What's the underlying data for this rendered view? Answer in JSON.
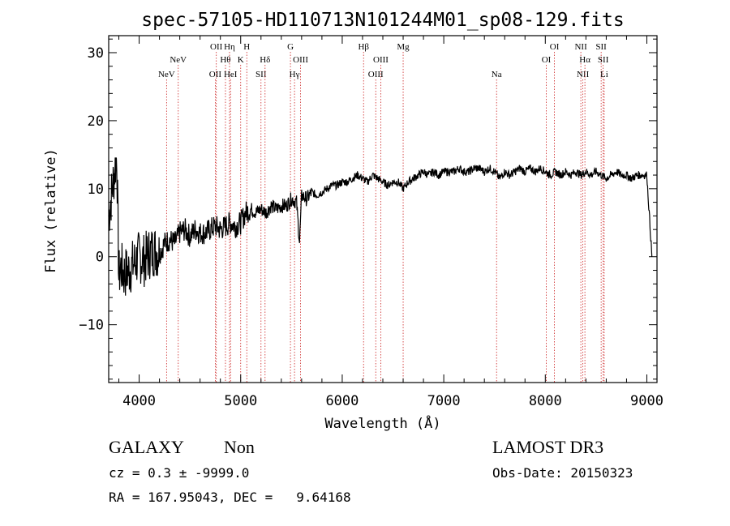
{
  "chart_data": {
    "type": "line",
    "title": "spec-57105-HD110713N101244M01_sp08-129.fits",
    "xlabel": "Wavelength (Å)",
    "ylabel": "Flux (relative)",
    "xlim": [
      3700,
      9100
    ],
    "ylim": [
      -18.5,
      32.5
    ],
    "xticks": [
      4000,
      5000,
      6000,
      7000,
      8000,
      9000
    ],
    "yticks": [
      -10,
      0,
      10,
      20,
      30
    ],
    "grid": false,
    "series": [
      {
        "x": [
          3700,
          3780,
          3800,
          3820,
          3850,
          3900,
          3950,
          4000,
          4050,
          4100,
          4150,
          4200,
          4250,
          4300,
          4350,
          4400,
          4450,
          4500,
          4550,
          4600,
          4650,
          4700,
          4750,
          4800,
          4850,
          4900,
          4950,
          5000,
          5050,
          5100,
          5150,
          5200,
          5250,
          5300,
          5350,
          5400,
          5450,
          5500,
          5550,
          5580,
          5600,
          5650,
          5700,
          5750,
          5800,
          5850,
          5900,
          5950,
          6000,
          6050,
          6100,
          6150,
          6200,
          6250,
          6300,
          6350,
          6400,
          6450,
          6500,
          6550,
          6600,
          6650,
          6700,
          6750,
          6800,
          6850,
          6900,
          6950,
          7000,
          7050,
          7100,
          7150,
          7200,
          7250,
          7300,
          7350,
          7400,
          7450,
          7500,
          7550,
          7600,
          7650,
          7700,
          7750,
          7800,
          7850,
          7900,
          7950,
          8000,
          8050,
          8100,
          8150,
          8200,
          8250,
          8300,
          8350,
          8400,
          8450,
          8500,
          8550,
          8600,
          8650,
          8700,
          8750,
          8800,
          8850,
          8900,
          8950,
          9000,
          9050
        ],
        "y": [
          6.0,
          15.0,
          -3.0,
          -1.5,
          -2.5,
          -2.0,
          -1.0,
          0.0,
          -0.5,
          0.5,
          1.0,
          0.5,
          2.0,
          2.5,
          2.0,
          3.5,
          4.0,
          3.0,
          4.0,
          3.5,
          3.5,
          4.0,
          4.5,
          4.0,
          4.5,
          5.0,
          4.5,
          5.0,
          6.5,
          7.0,
          6.5,
          7.0,
          6.5,
          7.5,
          7.0,
          7.5,
          7.5,
          8.5,
          8.0,
          2.0,
          9.0,
          8.5,
          9.5,
          9.0,
          9.5,
          10.0,
          10.5,
          10.5,
          11.0,
          11.0,
          11.5,
          12.0,
          11.5,
          11.0,
          12.0,
          11.5,
          11.0,
          10.5,
          11.0,
          11.0,
          10.0,
          11.0,
          11.5,
          12.0,
          12.5,
          12.0,
          12.5,
          12.0,
          12.5,
          12.5,
          12.5,
          13.0,
          12.5,
          12.5,
          13.0,
          13.0,
          12.5,
          13.0,
          12.5,
          11.5,
          12.5,
          12.0,
          12.5,
          13.0,
          12.5,
          13.0,
          12.5,
          13.0,
          12.5,
          12.0,
          12.5,
          12.0,
          12.5,
          12.0,
          12.5,
          12.0,
          12.5,
          12.0,
          12.5,
          12.0,
          11.5,
          12.0,
          12.5,
          12.0,
          12.0,
          11.5,
          12.0,
          12.0,
          12.0,
          0.0
        ]
      }
    ],
    "emission_lines": [
      {
        "wave": 4270,
        "label": "NeV",
        "row": 2
      },
      {
        "wave": 4385,
        "label": "NeV",
        "row": 1
      },
      {
        "wave": 4750,
        "label": "OII",
        "row": 2
      },
      {
        "wave": 4760,
        "label": "OII",
        "row": 0
      },
      {
        "wave": 4850,
        "label": "Hθ",
        "row": 1
      },
      {
        "wave": 4890,
        "label": "Hη",
        "row": 0
      },
      {
        "wave": 4900,
        "label": "HeI",
        "row": 2
      },
      {
        "wave": 5000,
        "label": "K",
        "row": 1
      },
      {
        "wave": 5060,
        "label": "H",
        "row": 0
      },
      {
        "wave": 5200,
        "label": "SII",
        "row": 2
      },
      {
        "wave": 5240,
        "label": "Hδ",
        "row": 1
      },
      {
        "wave": 5490,
        "label": "G",
        "row": 0
      },
      {
        "wave": 5530,
        "label": "Hγ",
        "row": 2
      },
      {
        "wave": 5590,
        "label": "OIII",
        "row": 1
      },
      {
        "wave": 6210,
        "label": "Hβ",
        "row": 0
      },
      {
        "wave": 6330,
        "label": "OIII",
        "row": 2
      },
      {
        "wave": 6380,
        "label": "OIII",
        "row": 1
      },
      {
        "wave": 6600,
        "label": "Mg",
        "row": 0
      },
      {
        "wave": 7520,
        "label": "Na",
        "row": 2
      },
      {
        "wave": 8010,
        "label": "OI",
        "row": 1
      },
      {
        "wave": 8090,
        "label": "OI",
        "row": 0
      },
      {
        "wave": 8350,
        "label": "NII",
        "row": 0
      },
      {
        "wave": 8370,
        "label": "NII",
        "row": 2
      },
      {
        "wave": 8390,
        "label": "Hα",
        "row": 1
      },
      {
        "wave": 8550,
        "label": "SII",
        "row": 0
      },
      {
        "wave": 8570,
        "label": "SII",
        "row": 1
      },
      {
        "wave": 8580,
        "label": "Li",
        "row": 2
      }
    ]
  },
  "info": {
    "class": "GALAXY",
    "subclass": "Non",
    "survey": "LAMOST DR3",
    "cz": "cz = 0.3 ± -9999.0",
    "obs_date": "Obs-Date: 20150323",
    "coords": "RA = 167.95043, DEC =   9.64168"
  },
  "colors": {
    "spectrum": "#000000",
    "line_markers": "#cc2222"
  }
}
